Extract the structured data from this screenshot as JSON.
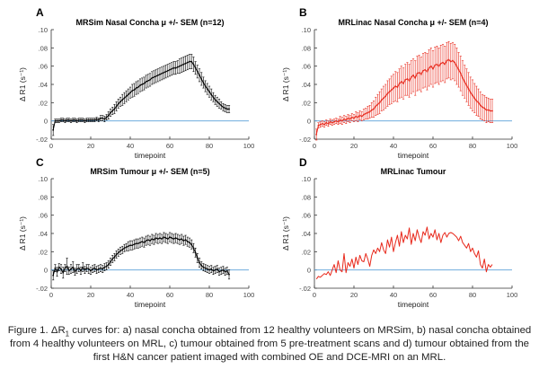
{
  "caption": {
    "p1": "Figure 1. ΔR",
    "sub": "1",
    "p2": " curves for: a) nasal concha obtained from 12 healthy volunteers on MRSim, b) nasal concha obtained from 4 healthy volunteers on MRL, c) tumour obtained from 5 pre-treatment scans and d) tumour obtained from the first H&N cancer patient imaged with combined OE and DCE-MRI on an MRL."
  },
  "colors": {
    "black": "#000000",
    "red": "#e8291c",
    "baseline": "#5aa0d8",
    "axis": "#333333",
    "ticktext": "#444444"
  },
  "chart_data": [
    {
      "panel": "A",
      "title": "MRSim Nasal Concha  μ +/- SEM  (n=12)",
      "type": "line",
      "color": "#000000",
      "error_bars": true,
      "xlabel": "timepoint",
      "ylabel": "Δ R1 (s⁻¹)",
      "xlim": [
        0,
        100
      ],
      "ylim": [
        -0.02,
        0.1
      ],
      "xticks": [
        0,
        20,
        40,
        60,
        80,
        100
      ],
      "yticks": [
        -0.02,
        0,
        0.02,
        0.04,
        0.06,
        0.08,
        0.1
      ],
      "baseline_y": 0,
      "x": [
        1,
        2,
        3,
        4,
        5,
        6,
        7,
        8,
        9,
        10,
        11,
        12,
        13,
        14,
        15,
        16,
        17,
        18,
        19,
        20,
        21,
        22,
        23,
        24,
        25,
        26,
        27,
        28,
        29,
        30,
        31,
        32,
        33,
        34,
        35,
        36,
        37,
        38,
        39,
        40,
        41,
        42,
        43,
        44,
        45,
        46,
        47,
        48,
        49,
        50,
        51,
        52,
        53,
        54,
        55,
        56,
        57,
        58,
        59,
        60,
        61,
        62,
        63,
        64,
        65,
        66,
        67,
        68,
        69,
        70,
        71,
        72,
        73,
        74,
        75,
        76,
        77,
        78,
        79,
        80,
        81,
        82,
        83,
        84,
        85,
        86,
        87,
        88,
        89,
        90
      ],
      "y": [
        -0.01,
        0.0,
        0.0,
        0.0,
        0.001,
        0.001,
        0.0,
        0.001,
        0.001,
        0.0,
        0.001,
        0.001,
        0.0,
        0.001,
        0.001,
        0.001,
        0.0,
        0.001,
        0.001,
        0.001,
        0.001,
        0.001,
        0.002,
        0.001,
        0.003,
        0.003,
        0.002,
        0.004,
        0.006,
        0.009,
        0.011,
        0.013,
        0.016,
        0.019,
        0.021,
        0.023,
        0.025,
        0.027,
        0.029,
        0.031,
        0.033,
        0.034,
        0.036,
        0.037,
        0.039,
        0.04,
        0.041,
        0.043,
        0.044,
        0.045,
        0.047,
        0.048,
        0.049,
        0.05,
        0.051,
        0.052,
        0.053,
        0.054,
        0.055,
        0.056,
        0.057,
        0.058,
        0.058,
        0.059,
        0.06,
        0.061,
        0.062,
        0.063,
        0.064,
        0.065,
        0.065,
        0.062,
        0.058,
        0.054,
        0.05,
        0.046,
        0.042,
        0.038,
        0.035,
        0.032,
        0.029,
        0.026,
        0.023,
        0.021,
        0.019,
        0.017,
        0.015,
        0.014,
        0.013,
        0.013
      ],
      "err": [
        0.006,
        0.002,
        0.002,
        0.002,
        0.002,
        0.002,
        0.002,
        0.002,
        0.002,
        0.002,
        0.002,
        0.002,
        0.002,
        0.002,
        0.002,
        0.002,
        0.002,
        0.002,
        0.002,
        0.002,
        0.002,
        0.002,
        0.002,
        0.002,
        0.003,
        0.003,
        0.003,
        0.003,
        0.004,
        0.004,
        0.004,
        0.005,
        0.005,
        0.005,
        0.005,
        0.006,
        0.006,
        0.006,
        0.006,
        0.006,
        0.007,
        0.007,
        0.007,
        0.007,
        0.007,
        0.007,
        0.007,
        0.007,
        0.007,
        0.007,
        0.007,
        0.007,
        0.007,
        0.007,
        0.007,
        0.007,
        0.007,
        0.007,
        0.007,
        0.007,
        0.007,
        0.007,
        0.007,
        0.007,
        0.008,
        0.008,
        0.008,
        0.008,
        0.008,
        0.008,
        0.008,
        0.008,
        0.007,
        0.007,
        0.007,
        0.007,
        0.006,
        0.006,
        0.006,
        0.006,
        0.006,
        0.005,
        0.005,
        0.005,
        0.005,
        0.004,
        0.004,
        0.004,
        0.004,
        0.004
      ]
    },
    {
      "panel": "B",
      "title": "MRLinac Nasal Concha  μ +/- SEM  (n=4)",
      "type": "line",
      "color": "#e8291c",
      "error_bars": true,
      "xlabel": "timepoint",
      "ylabel": "Δ R1 (s⁻¹)",
      "xlim": [
        0,
        100
      ],
      "ylim": [
        -0.02,
        0.1
      ],
      "xticks": [
        0,
        20,
        40,
        60,
        80,
        100
      ],
      "yticks": [
        -0.02,
        0,
        0.02,
        0.04,
        0.06,
        0.08,
        0.1
      ],
      "baseline_y": 0,
      "x": [
        1,
        2,
        3,
        4,
        5,
        6,
        7,
        8,
        9,
        10,
        11,
        12,
        13,
        14,
        15,
        16,
        17,
        18,
        19,
        20,
        21,
        22,
        23,
        24,
        25,
        26,
        27,
        28,
        29,
        30,
        31,
        32,
        33,
        34,
        35,
        36,
        37,
        38,
        39,
        40,
        41,
        42,
        43,
        44,
        45,
        46,
        47,
        48,
        49,
        50,
        51,
        52,
        53,
        54,
        55,
        56,
        57,
        58,
        59,
        60,
        61,
        62,
        63,
        64,
        65,
        66,
        67,
        68,
        69,
        70,
        71,
        72,
        73,
        74,
        75,
        76,
        77,
        78,
        79,
        80,
        81,
        82,
        83,
        84,
        85,
        86,
        87,
        88,
        89,
        90
      ],
      "y": [
        -0.015,
        -0.005,
        -0.004,
        -0.003,
        -0.004,
        -0.002,
        -0.003,
        -0.001,
        -0.002,
        -0.001,
        0.0,
        -0.001,
        0.001,
        0.0,
        0.002,
        0.001,
        0.003,
        0.002,
        0.004,
        0.003,
        0.005,
        0.004,
        0.006,
        0.005,
        0.007,
        0.008,
        0.009,
        0.01,
        0.012,
        0.013,
        0.016,
        0.018,
        0.02,
        0.023,
        0.025,
        0.027,
        0.03,
        0.032,
        0.034,
        0.036,
        0.038,
        0.037,
        0.041,
        0.043,
        0.041,
        0.045,
        0.046,
        0.044,
        0.048,
        0.05,
        0.047,
        0.052,
        0.053,
        0.051,
        0.055,
        0.056,
        0.054,
        0.058,
        0.06,
        0.057,
        0.061,
        0.062,
        0.06,
        0.063,
        0.064,
        0.062,
        0.066,
        0.067,
        0.065,
        0.066,
        0.064,
        0.06,
        0.056,
        0.052,
        0.047,
        0.043,
        0.039,
        0.035,
        0.031,
        0.028,
        0.025,
        0.022,
        0.02,
        0.017,
        0.015,
        0.014,
        0.012,
        0.012,
        0.011,
        0.011
      ],
      "err": [
        0.006,
        0.003,
        0.003,
        0.003,
        0.003,
        0.003,
        0.003,
        0.003,
        0.003,
        0.003,
        0.003,
        0.003,
        0.004,
        0.004,
        0.004,
        0.004,
        0.004,
        0.004,
        0.004,
        0.004,
        0.005,
        0.005,
        0.005,
        0.005,
        0.006,
        0.006,
        0.007,
        0.007,
        0.008,
        0.009,
        0.01,
        0.011,
        0.012,
        0.012,
        0.013,
        0.013,
        0.014,
        0.014,
        0.015,
        0.015,
        0.016,
        0.016,
        0.016,
        0.017,
        0.017,
        0.017,
        0.018,
        0.018,
        0.018,
        0.018,
        0.019,
        0.019,
        0.019,
        0.019,
        0.019,
        0.019,
        0.02,
        0.02,
        0.02,
        0.02,
        0.02,
        0.02,
        0.02,
        0.02,
        0.02,
        0.02,
        0.02,
        0.02,
        0.02,
        0.02,
        0.02,
        0.02,
        0.019,
        0.019,
        0.019,
        0.018,
        0.018,
        0.018,
        0.017,
        0.017,
        0.016,
        0.016,
        0.015,
        0.015,
        0.014,
        0.014,
        0.014,
        0.013,
        0.013,
        0.013
      ]
    },
    {
      "panel": "C",
      "title": "MRSim Tumour  μ +/- SEM  (n=5)",
      "type": "line",
      "color": "#000000",
      "error_bars": true,
      "xlabel": "timepoint",
      "ylabel": "Δ R1 (s⁻¹)",
      "xlim": [
        0,
        100
      ],
      "ylim": [
        -0.02,
        0.1
      ],
      "xticks": [
        0,
        20,
        40,
        60,
        80,
        100
      ],
      "yticks": [
        -0.02,
        0,
        0.02,
        0.04,
        0.06,
        0.08,
        0.1
      ],
      "baseline_y": 0,
      "x": [
        1,
        2,
        3,
        4,
        5,
        6,
        7,
        8,
        9,
        10,
        11,
        12,
        13,
        14,
        15,
        16,
        17,
        18,
        19,
        20,
        21,
        22,
        23,
        24,
        25,
        26,
        27,
        28,
        29,
        30,
        31,
        32,
        33,
        34,
        35,
        36,
        37,
        38,
        39,
        40,
        41,
        42,
        43,
        44,
        45,
        46,
        47,
        48,
        49,
        50,
        51,
        52,
        53,
        54,
        55,
        56,
        57,
        58,
        59,
        60,
        61,
        62,
        63,
        64,
        65,
        66,
        67,
        68,
        69,
        70,
        71,
        72,
        73,
        74,
        75,
        76,
        77,
        78,
        79,
        80,
        81,
        82,
        83,
        84,
        85,
        86,
        87,
        88,
        89,
        90
      ],
      "y": [
        -0.006,
        0.002,
        -0.002,
        0.003,
        0.001,
        -0.003,
        0.002,
        0.004,
        -0.001,
        0.001,
        0.003,
        -0.002,
        0.001,
        0.002,
        -0.001,
        0.003,
        0.0,
        0.002,
        0.001,
        -0.001,
        0.001,
        0.002,
        0.0,
        0.001,
        0.002,
        0.001,
        0.003,
        0.004,
        0.006,
        0.009,
        0.012,
        0.014,
        0.017,
        0.019,
        0.021,
        0.022,
        0.024,
        0.025,
        0.026,
        0.027,
        0.027,
        0.028,
        0.029,
        0.029,
        0.03,
        0.031,
        0.03,
        0.032,
        0.033,
        0.032,
        0.034,
        0.033,
        0.035,
        0.034,
        0.035,
        0.034,
        0.036,
        0.035,
        0.034,
        0.036,
        0.035,
        0.034,
        0.035,
        0.034,
        0.033,
        0.034,
        0.032,
        0.033,
        0.031,
        0.03,
        0.028,
        0.024,
        0.019,
        0.013,
        0.008,
        0.005,
        0.003,
        0.002,
        0.001,
        0.0,
        0.001,
        -0.001,
        0.0,
        0.001,
        -0.002,
        -0.001,
        0.0,
        -0.002,
        -0.001,
        -0.005
      ],
      "err": [
        0.005,
        0.004,
        0.005,
        0.004,
        0.005,
        0.006,
        0.004,
        0.009,
        0.004,
        0.005,
        0.006,
        0.004,
        0.005,
        0.004,
        0.004,
        0.005,
        0.004,
        0.004,
        0.005,
        0.004,
        0.004,
        0.004,
        0.004,
        0.004,
        0.004,
        0.004,
        0.004,
        0.004,
        0.004,
        0.004,
        0.004,
        0.004,
        0.004,
        0.004,
        0.004,
        0.004,
        0.004,
        0.004,
        0.005,
        0.005,
        0.005,
        0.005,
        0.005,
        0.005,
        0.005,
        0.005,
        0.005,
        0.005,
        0.005,
        0.005,
        0.005,
        0.005,
        0.005,
        0.005,
        0.005,
        0.005,
        0.005,
        0.005,
        0.005,
        0.005,
        0.005,
        0.005,
        0.005,
        0.005,
        0.005,
        0.005,
        0.005,
        0.005,
        0.005,
        0.005,
        0.005,
        0.005,
        0.005,
        0.005,
        0.005,
        0.004,
        0.004,
        0.004,
        0.004,
        0.004,
        0.004,
        0.004,
        0.004,
        0.004,
        0.004,
        0.004,
        0.004,
        0.004,
        0.004,
        0.005
      ]
    },
    {
      "panel": "D",
      "title": "MRLinac Tumour",
      "type": "line",
      "color": "#e8291c",
      "error_bars": false,
      "xlabel": "timepoint",
      "ylabel": "Δ R1 (s⁻¹)",
      "xlim": [
        0,
        100
      ],
      "ylim": [
        -0.02,
        0.1
      ],
      "xticks": [
        0,
        20,
        40,
        60,
        80,
        100
      ],
      "yticks": [
        -0.02,
        0,
        0.02,
        0.04,
        0.06,
        0.08,
        0.1
      ],
      "baseline_y": 0,
      "x": [
        1,
        2,
        3,
        4,
        5,
        6,
        7,
        8,
        9,
        10,
        11,
        12,
        13,
        14,
        15,
        16,
        17,
        18,
        19,
        20,
        21,
        22,
        23,
        24,
        25,
        26,
        27,
        28,
        29,
        30,
        31,
        32,
        33,
        34,
        35,
        36,
        37,
        38,
        39,
        40,
        41,
        42,
        43,
        44,
        45,
        46,
        47,
        48,
        49,
        50,
        51,
        52,
        53,
        54,
        55,
        56,
        57,
        58,
        59,
        60,
        61,
        62,
        63,
        64,
        65,
        66,
        67,
        68,
        69,
        70,
        71,
        72,
        73,
        74,
        75,
        76,
        77,
        78,
        79,
        80,
        81,
        82,
        83,
        84,
        85,
        86,
        87,
        88,
        89,
        90
      ],
      "y": [
        -0.01,
        -0.007,
        -0.008,
        -0.006,
        -0.004,
        -0.005,
        -0.002,
        -0.006,
        0.0,
        0.006,
        -0.003,
        0.01,
        0.0,
        -0.002,
        0.018,
        -0.003,
        0.008,
        0.004,
        0.012,
        0.002,
        0.014,
        0.006,
        0.016,
        0.01,
        0.009,
        0.018,
        0.012,
        0.004,
        0.016,
        0.022,
        0.018,
        0.024,
        0.02,
        0.03,
        0.022,
        0.018,
        0.033,
        0.025,
        0.036,
        0.02,
        0.03,
        0.038,
        0.026,
        0.042,
        0.03,
        0.038,
        0.034,
        0.046,
        0.028,
        0.04,
        0.032,
        0.044,
        0.036,
        0.03,
        0.042,
        0.038,
        0.047,
        0.034,
        0.04,
        0.036,
        0.044,
        0.033,
        0.04,
        0.03,
        0.038,
        0.041,
        0.036,
        0.04,
        0.041,
        0.04,
        0.038,
        0.036,
        0.032,
        0.037,
        0.03,
        0.027,
        0.024,
        0.029,
        0.02,
        0.024,
        0.018,
        0.014,
        0.021,
        0.006,
        0.002,
        0.012,
        -0.002,
        0.006,
        0.003,
        0.006
      ],
      "err": []
    }
  ]
}
